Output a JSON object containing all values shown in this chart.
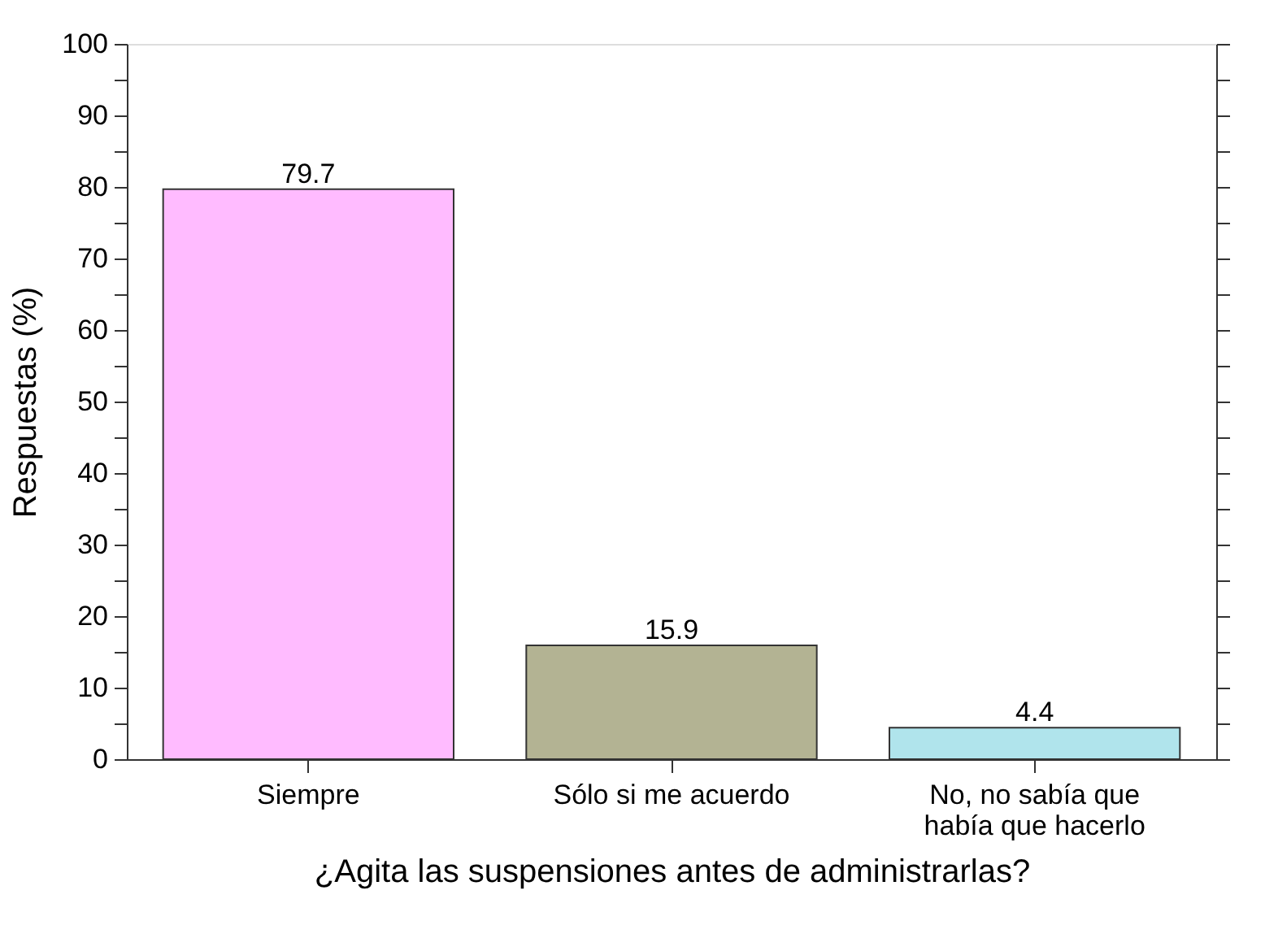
{
  "chart_data": {
    "type": "bar",
    "xlabel": "¿Agita las suspensiones antes de administrarlas?",
    "ylabel": "Respuestas (%)",
    "categories": [
      "Siempre",
      "Sólo si me acuerdo",
      "No, no sabía que\nhabía que hacerlo"
    ],
    "values": [
      79.7,
      15.9,
      4.4
    ],
    "colors": [
      "#ffbbff",
      "#b3b393",
      "#b0e4ec"
    ],
    "ylim": [
      0,
      100
    ],
    "yticks": [
      0,
      {
        "value": 5,
        "label": null
      },
      10,
      {
        "value": 15,
        "label": null
      },
      20,
      {
        "value": 25,
        "label": null
      },
      30,
      {
        "value": 35,
        "label": null
      },
      40,
      {
        "value": 45,
        "label": null
      },
      50,
      {
        "value": 55,
        "label": null
      },
      60,
      {
        "value": 65,
        "label": null
      },
      70,
      {
        "value": 75,
        "label": null
      },
      80,
      {
        "value": 85,
        "label": null
      },
      90,
      {
        "value": 95,
        "label": null
      },
      100
    ],
    "data_labels": true,
    "grid": false
  }
}
